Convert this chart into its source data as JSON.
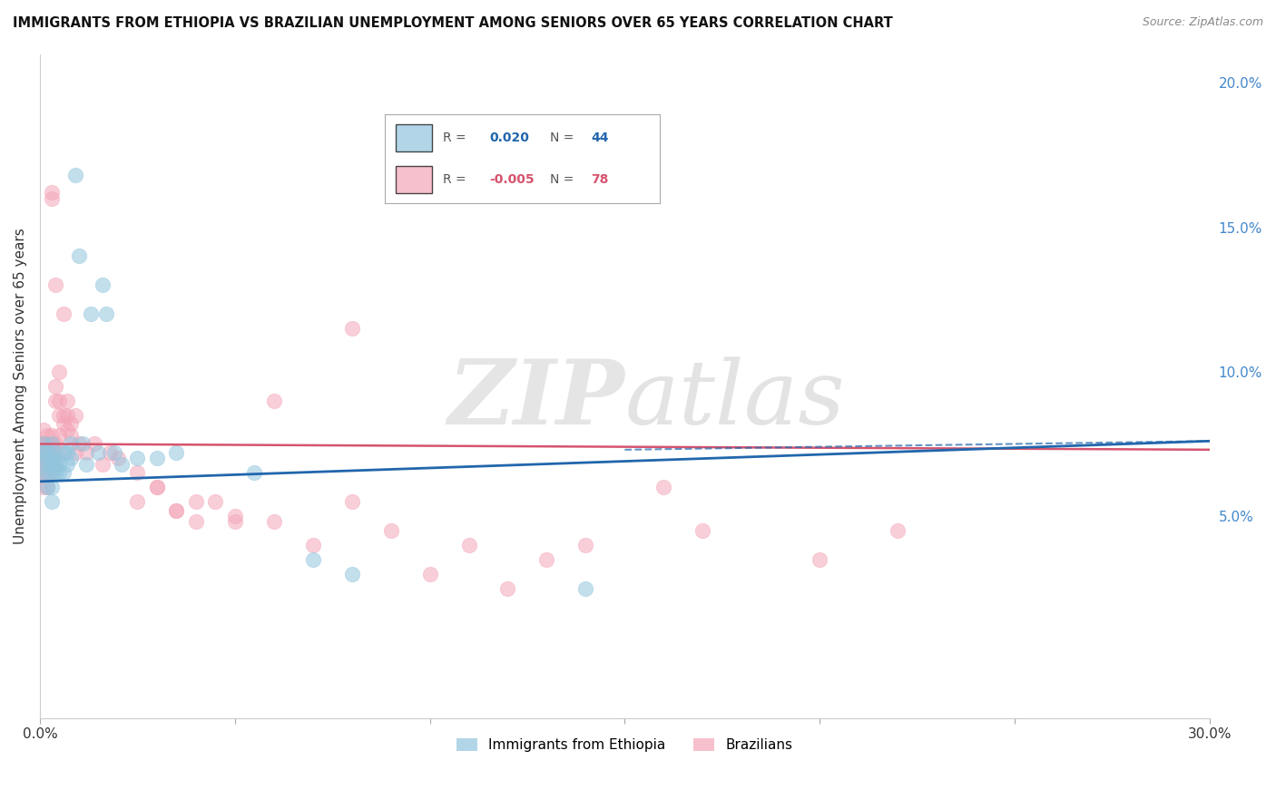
{
  "title": "IMMIGRANTS FROM ETHIOPIA VS BRAZILIAN UNEMPLOYMENT AMONG SENIORS OVER 65 YEARS CORRELATION CHART",
  "source": "Source: ZipAtlas.com",
  "watermark_zip": "ZIP",
  "watermark_atlas": "atlas",
  "xlabel": "",
  "ylabel": "Unemployment Among Seniors over 65 years",
  "xlim": [
    0.0,
    0.3
  ],
  "ylim": [
    -0.02,
    0.21
  ],
  "legend_blue_r_val": "0.020",
  "legend_blue_n_val": "44",
  "legend_pink_r_val": "-0.005",
  "legend_pink_n_val": "78",
  "legend_label_blue": "Immigrants from Ethiopia",
  "legend_label_pink": "Brazilians",
  "blue_color": "#92c5de",
  "pink_color": "#f4a6b8",
  "blue_line_color": "#2166ac",
  "pink_line_color": "#d6546e",
  "grid_color": "#d0d0d0",
  "background_color": "#ffffff",
  "blue_line_x": [
    0.0,
    0.3
  ],
  "blue_line_y": [
    0.062,
    0.076
  ],
  "pink_line_x": [
    0.0,
    0.3
  ],
  "pink_line_y": [
    0.075,
    0.073
  ],
  "blue_scatter_x": [
    0.001,
    0.001,
    0.001,
    0.001,
    0.002,
    0.002,
    0.002,
    0.002,
    0.002,
    0.003,
    0.003,
    0.003,
    0.003,
    0.003,
    0.003,
    0.004,
    0.004,
    0.004,
    0.004,
    0.005,
    0.005,
    0.006,
    0.006,
    0.007,
    0.007,
    0.008,
    0.008,
    0.009,
    0.01,
    0.011,
    0.012,
    0.013,
    0.015,
    0.016,
    0.017,
    0.019,
    0.021,
    0.025,
    0.03,
    0.035,
    0.055,
    0.07,
    0.08,
    0.14
  ],
  "blue_scatter_y": [
    0.07,
    0.065,
    0.072,
    0.075,
    0.068,
    0.073,
    0.07,
    0.06,
    0.065,
    0.07,
    0.075,
    0.068,
    0.065,
    0.06,
    0.055,
    0.072,
    0.068,
    0.065,
    0.07,
    0.065,
    0.068,
    0.072,
    0.065,
    0.068,
    0.072,
    0.07,
    0.075,
    0.168,
    0.14,
    0.075,
    0.068,
    0.12,
    0.072,
    0.13,
    0.12,
    0.072,
    0.068,
    0.07,
    0.07,
    0.072,
    0.065,
    0.035,
    0.03,
    0.025
  ],
  "pink_scatter_x": [
    0.001,
    0.001,
    0.001,
    0.001,
    0.001,
    0.001,
    0.001,
    0.001,
    0.001,
    0.002,
    0.002,
    0.002,
    0.002,
    0.002,
    0.002,
    0.002,
    0.002,
    0.002,
    0.003,
    0.003,
    0.003,
    0.003,
    0.003,
    0.003,
    0.003,
    0.003,
    0.004,
    0.004,
    0.004,
    0.004,
    0.004,
    0.005,
    0.005,
    0.005,
    0.005,
    0.005,
    0.006,
    0.006,
    0.006,
    0.007,
    0.007,
    0.007,
    0.008,
    0.008,
    0.009,
    0.009,
    0.01,
    0.012,
    0.014,
    0.016,
    0.018,
    0.02,
    0.025,
    0.03,
    0.035,
    0.04,
    0.05,
    0.06,
    0.07,
    0.08,
    0.09,
    0.1,
    0.11,
    0.12,
    0.13,
    0.14,
    0.16,
    0.17,
    0.2,
    0.22,
    0.08,
    0.06,
    0.045,
    0.05,
    0.025,
    0.03,
    0.035,
    0.04
  ],
  "pink_scatter_y": [
    0.075,
    0.068,
    0.065,
    0.072,
    0.06,
    0.07,
    0.08,
    0.065,
    0.075,
    0.068,
    0.065,
    0.072,
    0.06,
    0.078,
    0.065,
    0.068,
    0.072,
    0.075,
    0.16,
    0.162,
    0.075,
    0.068,
    0.065,
    0.072,
    0.068,
    0.078,
    0.13,
    0.09,
    0.095,
    0.075,
    0.068,
    0.1,
    0.085,
    0.09,
    0.072,
    0.078,
    0.12,
    0.085,
    0.082,
    0.085,
    0.09,
    0.08,
    0.082,
    0.078,
    0.085,
    0.072,
    0.075,
    0.072,
    0.075,
    0.068,
    0.072,
    0.07,
    0.065,
    0.06,
    0.052,
    0.055,
    0.05,
    0.048,
    0.04,
    0.055,
    0.045,
    0.03,
    0.04,
    0.025,
    0.035,
    0.04,
    0.06,
    0.045,
    0.035,
    0.045,
    0.115,
    0.09,
    0.055,
    0.048,
    0.055,
    0.06,
    0.052,
    0.048
  ]
}
